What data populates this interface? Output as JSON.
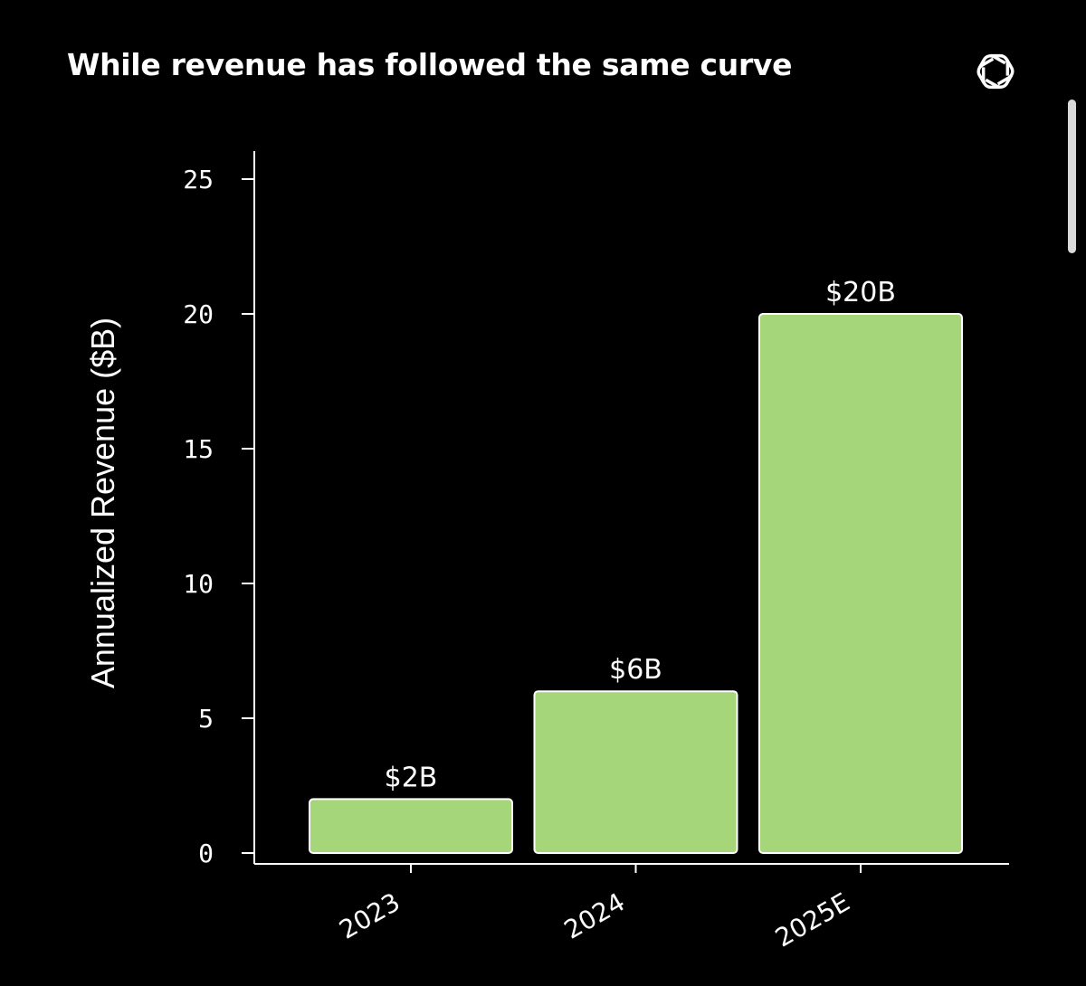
{
  "page": {
    "title": "While revenue has followed the same curve",
    "logo": "openai-logo-icon"
  },
  "colors": {
    "background": "#000000",
    "bar": "#a6d67a",
    "bar_edge": "#ffffff",
    "text": "#ffffff",
    "scrollbar": "#d9d9d9"
  },
  "chart_data": {
    "type": "bar",
    "title": "While revenue has followed the same curve",
    "xlabel": "",
    "ylabel": "Annualized Revenue ($B)",
    "categories": [
      "2023",
      "2024",
      "2025E"
    ],
    "values": [
      2,
      6,
      20
    ],
    "data_labels": [
      "$2B",
      "$6B",
      "$20B"
    ],
    "ylim": [
      0,
      25
    ],
    "yticks": [
      0,
      5,
      10,
      15,
      20,
      25
    ],
    "grid": false,
    "legend": "none"
  }
}
